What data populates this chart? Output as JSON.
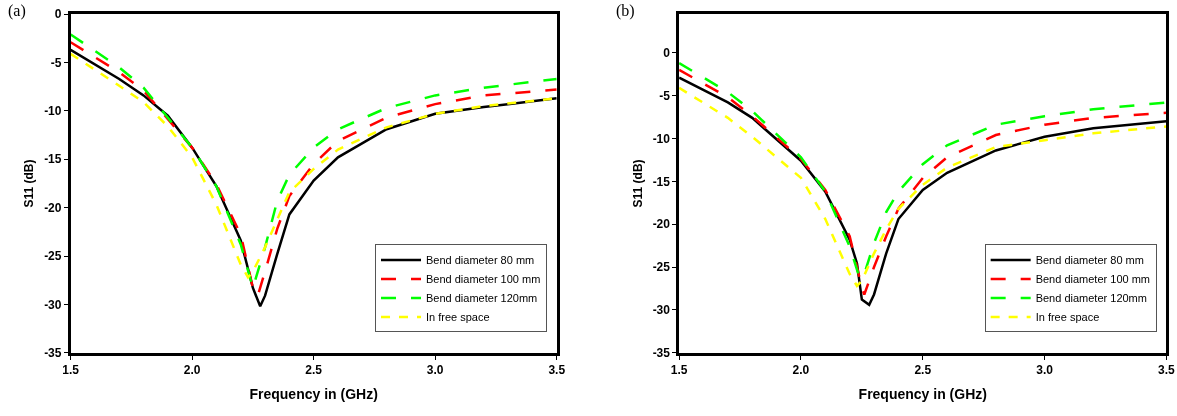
{
  "chart_data": [
    {
      "type": "line",
      "xlabel": "Frequency in (GHz)",
      "ylabel": "S11 (dB)",
      "annotations": [
        "(a)"
      ],
      "xlim": [
        1.5,
        3.5
      ],
      "xticks": [
        {
          "value": 1.5,
          "label": "1.5"
        },
        {
          "value": 2.0,
          "label": "2.0"
        },
        {
          "value": 2.5,
          "label": "2.5"
        },
        {
          "value": 3.0,
          "label": "3.0"
        },
        {
          "value": 3.5,
          "label": "3.5"
        }
      ],
      "ylim": [
        -35,
        0
      ],
      "yticks": [
        -35,
        -30,
        -25,
        -20,
        -15,
        -10,
        -5,
        0
      ],
      "legend": "bottom right",
      "series": [
        {
          "name": "Bend diameter 80 mm",
          "color": "#000000",
          "line_style": "solid",
          "x": [
            1.5,
            1.7,
            1.8,
            1.9,
            2.0,
            2.1,
            2.2,
            2.25,
            2.28,
            2.3,
            2.35,
            2.4,
            2.5,
            2.6,
            2.8,
            3.0,
            3.2,
            3.5
          ],
          "values": [
            -3.7,
            -6.7,
            -8.4,
            -10.5,
            -13.8,
            -17.8,
            -23.4,
            -28.3,
            -30.2,
            -29.1,
            -24.8,
            -20.7,
            -17.2,
            -14.8,
            -11.9,
            -10.3,
            -9.6,
            -8.7
          ]
        },
        {
          "name": "Bend diameter 100 mm",
          "color": "#ff0000",
          "line_style": "dashed",
          "x": [
            1.5,
            1.7,
            1.8,
            2.0,
            2.1,
            2.2,
            2.25,
            2.27,
            2.3,
            2.35,
            2.4,
            2.5,
            2.6,
            2.8,
            3.0,
            3.2,
            3.5
          ],
          "values": [
            -2.9,
            -6.0,
            -7.9,
            -13.8,
            -17.6,
            -22.8,
            -28.3,
            -29.1,
            -26.6,
            -22.2,
            -18.8,
            -15.5,
            -13.1,
            -10.7,
            -9.3,
            -8.4,
            -7.8
          ]
        },
        {
          "name": "Bend diameter 120mm",
          "color": "#00ff00",
          "line_style": "dashed",
          "x": [
            1.5,
            1.7,
            1.8,
            2.0,
            2.1,
            2.2,
            2.25,
            2.3,
            2.35,
            2.4,
            2.5,
            2.6,
            2.8,
            3.0,
            3.2,
            3.5
          ],
          "values": [
            -2.1,
            -5.5,
            -7.6,
            -13.8,
            -17.8,
            -23.8,
            -28.3,
            -24.1,
            -19.3,
            -16.6,
            -13.8,
            -11.9,
            -9.7,
            -8.4,
            -7.6,
            -6.7
          ]
        },
        {
          "name": "In free space",
          "color": "#ffff00",
          "line_style": "dotted",
          "x": [
            1.5,
            1.7,
            1.8,
            1.9,
            2.0,
            2.1,
            2.2,
            2.23,
            2.25,
            2.3,
            2.4,
            2.5,
            2.6,
            2.8,
            3.0,
            3.2,
            3.5
          ],
          "values": [
            -4.1,
            -7.4,
            -9.1,
            -11.6,
            -14.8,
            -19.7,
            -25.9,
            -27.2,
            -26.6,
            -24.1,
            -18.4,
            -16.0,
            -14.0,
            -11.7,
            -10.3,
            -9.5,
            -8.7
          ]
        }
      ]
    },
    {
      "type": "line",
      "xlabel": "Frequency in (GHz)",
      "ylabel": "S11 (dB)",
      "annotations": [
        "(b)"
      ],
      "xlim": [
        1.5,
        3.5
      ],
      "xticks": [
        {
          "value": 1.5,
          "label": "1.5"
        },
        {
          "value": 2.0,
          "label": "2.0"
        },
        {
          "value": 2.5,
          "label": "2.5"
        },
        {
          "value": 3.0,
          "label": "3.0"
        },
        {
          "value": 3.5,
          "label": "3.5"
        }
      ],
      "ylim": [
        -35,
        4.5
      ],
      "yticks": [
        -35,
        -30,
        -25,
        -20,
        -15,
        -10,
        -5,
        0
      ],
      "legend": "bottom right",
      "series": [
        {
          "name": "Bend diameter 80 mm",
          "color": "#000000",
          "line_style": "solid",
          "x": [
            1.5,
            1.7,
            1.8,
            2.0,
            2.1,
            2.2,
            2.23,
            2.25,
            2.28,
            2.3,
            2.35,
            2.4,
            2.5,
            2.6,
            2.8,
            3.0,
            3.2,
            3.5
          ],
          "values": [
            -2.9,
            -5.8,
            -7.6,
            -12.6,
            -16.2,
            -21.8,
            -24.6,
            -28.8,
            -29.4,
            -28.2,
            -23.4,
            -19.4,
            -16.0,
            -14.0,
            -11.4,
            -9.8,
            -8.8,
            -8.0
          ]
        },
        {
          "name": "Bend diameter 100 mm",
          "color": "#ff0000",
          "line_style": "dashed",
          "x": [
            1.5,
            1.7,
            1.8,
            2.0,
            2.1,
            2.2,
            2.25,
            2.26,
            2.3,
            2.35,
            2.4,
            2.5,
            2.6,
            2.8,
            3.0,
            3.2,
            3.5
          ],
          "values": [
            -2.0,
            -5.2,
            -7.4,
            -12.4,
            -16.0,
            -21.4,
            -27.4,
            -28.2,
            -25.0,
            -21.4,
            -18.2,
            -14.6,
            -12.2,
            -9.6,
            -8.4,
            -7.6,
            -7.0
          ]
        },
        {
          "name": "Bend diameter 120mm",
          "color": "#00ff00",
          "line_style": "dashed",
          "x": [
            1.5,
            1.7,
            1.8,
            2.0,
            2.1,
            2.2,
            2.24,
            2.26,
            2.3,
            2.35,
            2.4,
            2.5,
            2.6,
            2.8,
            3.0,
            3.2,
            3.5
          ],
          "values": [
            -1.2,
            -4.6,
            -6.8,
            -12.2,
            -16.2,
            -22.6,
            -26.2,
            -25.8,
            -22.2,
            -18.6,
            -16.2,
            -13.0,
            -10.8,
            -8.4,
            -7.4,
            -6.6,
            -5.8
          ]
        },
        {
          "name": "In free space",
          "color": "#ffff00",
          "line_style": "dotted",
          "x": [
            1.5,
            1.7,
            1.8,
            2.0,
            2.1,
            2.2,
            2.23,
            2.25,
            2.3,
            2.35,
            2.4,
            2.5,
            2.6,
            2.8,
            3.0,
            3.2,
            3.5
          ],
          "values": [
            -4.1,
            -7.6,
            -9.8,
            -14.6,
            -19.4,
            -25.8,
            -27.2,
            -26.6,
            -23.4,
            -20.6,
            -18.2,
            -15.4,
            -13.4,
            -11.0,
            -10.2,
            -9.4,
            -8.6
          ]
        }
      ]
    }
  ]
}
